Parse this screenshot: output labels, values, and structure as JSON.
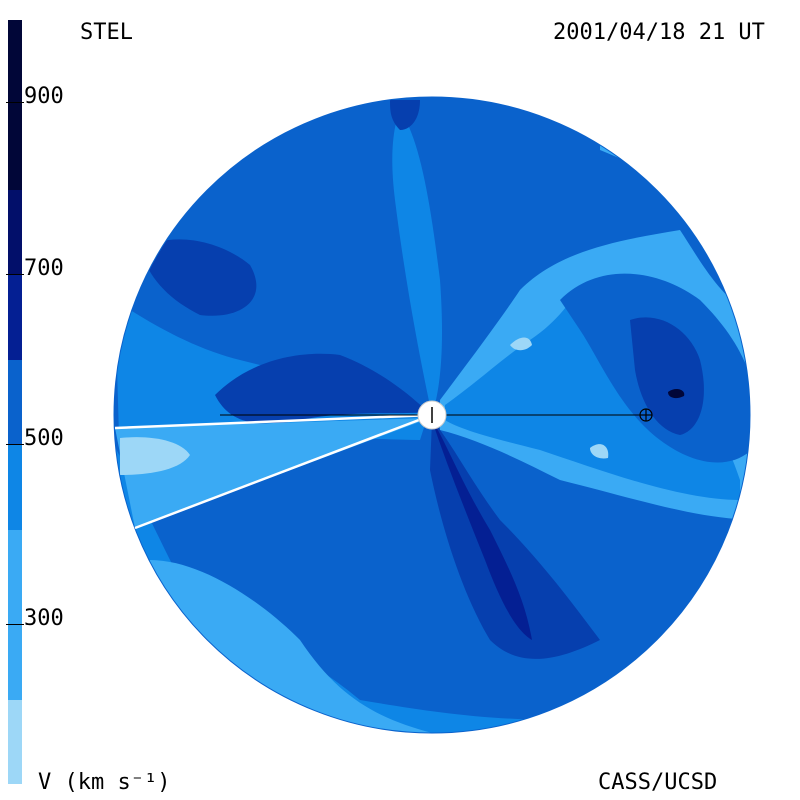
{
  "header": {
    "instrument": "STEL",
    "timestamp": "2001/04/18 21 UT"
  },
  "footer": {
    "unit_label": "V (km s⁻¹)",
    "credit": "CASS/UCSD"
  },
  "colorbar": {
    "title": "V (km s⁻¹)",
    "ticks": [
      "300",
      "500",
      "700",
      "900"
    ],
    "levels": [
      {
        "v": 200,
        "color": "#9dd7f7"
      },
      {
        "v": 300,
        "color": "#3aaaf4"
      },
      {
        "v": 400,
        "color": "#0e86e6"
      },
      {
        "v": 500,
        "color": "#0a62cc"
      },
      {
        "v": 600,
        "color": "#063fae"
      },
      {
        "v": 700,
        "color": "#041f93"
      },
      {
        "v": 800,
        "color": "#020f6a"
      },
      {
        "v": 900,
        "color": "#010638"
      }
    ]
  },
  "map": {
    "type": "solar wind velocity synoptic map",
    "markers": [
      {
        "symbol": "sun",
        "label": ""
      },
      {
        "symbol": "earth",
        "label": ""
      }
    ]
  }
}
